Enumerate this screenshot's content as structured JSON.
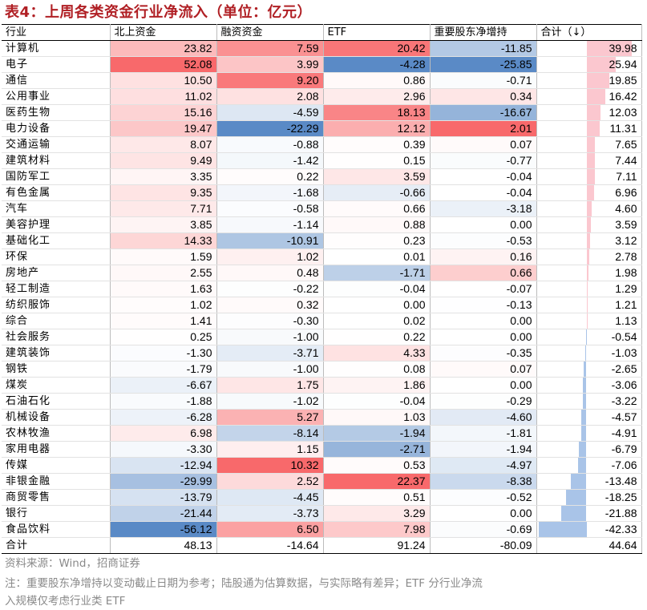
{
  "title": "表4：上周各类资金行业净流入（单位：亿元）",
  "headers": [
    "行业",
    "北上资金",
    "融资资金",
    "ETF",
    "重要股东净增持",
    "合计（↓）"
  ],
  "rows": [
    [
      "计算机",
      23.82,
      7.59,
      20.42,
      -11.85,
      39.98
    ],
    [
      "电子",
      52.08,
      3.99,
      -4.28,
      -25.85,
      25.94
    ],
    [
      "通信",
      10.5,
      9.2,
      0.86,
      -0.71,
      19.85
    ],
    [
      "公用事业",
      11.02,
      2.08,
      2.96,
      0.34,
      16.42
    ],
    [
      "医药生物",
      15.16,
      -4.59,
      18.13,
      -16.67,
      12.03
    ],
    [
      "电力设备",
      19.47,
      -22.29,
      12.12,
      2.01,
      11.31
    ],
    [
      "交通运输",
      8.07,
      -0.88,
      0.39,
      0.07,
      7.65
    ],
    [
      "建筑材料",
      9.49,
      -1.42,
      0.15,
      -0.77,
      7.44
    ],
    [
      "国防军工",
      3.35,
      0.22,
      3.59,
      -0.04,
      7.11
    ],
    [
      "有色金属",
      9.35,
      -1.68,
      -0.66,
      -0.04,
      6.96
    ],
    [
      "汽车",
      7.71,
      -0.58,
      0.66,
      -3.18,
      4.6
    ],
    [
      "美容护理",
      3.85,
      -1.14,
      0.88,
      0.0,
      3.59
    ],
    [
      "基础化工",
      14.33,
      -10.91,
      0.23,
      -0.53,
      3.12
    ],
    [
      "环保",
      1.59,
      1.02,
      0.01,
      0.16,
      2.78
    ],
    [
      "房地产",
      2.55,
      0.48,
      -1.71,
      0.66,
      1.98
    ],
    [
      "轻工制造",
      1.63,
      -0.22,
      -0.04,
      -0.07,
      1.29
    ],
    [
      "纺织服饰",
      1.02,
      0.32,
      0.0,
      -0.13,
      1.21
    ],
    [
      "综合",
      1.41,
      -0.3,
      0.02,
      0.0,
      1.13
    ],
    [
      "社会服务",
      0.25,
      -1.0,
      0.22,
      0.0,
      -0.54
    ],
    [
      "建筑装饰",
      -1.3,
      -3.71,
      4.33,
      -0.35,
      -1.03
    ],
    [
      "钢铁",
      -1.79,
      -1.0,
      0.08,
      0.07,
      -2.65
    ],
    [
      "煤炭",
      -6.67,
      1.75,
      1.86,
      0.0,
      -3.06
    ],
    [
      "石油石化",
      -1.88,
      -1.02,
      -0.04,
      -0.29,
      -3.22
    ],
    [
      "机械设备",
      -6.28,
      5.27,
      1.03,
      -4.6,
      -4.57
    ],
    [
      "农林牧渔",
      6.98,
      -8.14,
      -1.94,
      -1.81,
      -4.91
    ],
    [
      "家用电器",
      -3.3,
      1.15,
      -2.71,
      -1.94,
      -6.79
    ],
    [
      "传媒",
      -12.94,
      10.32,
      0.53,
      -4.97,
      -7.06
    ],
    [
      "非银金融",
      -29.99,
      2.52,
      22.37,
      -8.38,
      -13.48
    ],
    [
      "商贸零售",
      -13.79,
      -4.45,
      0.51,
      -0.52,
      -18.25
    ],
    [
      "银行",
      -21.44,
      -3.73,
      3.29,
      0.0,
      -21.88
    ],
    [
      "食品饮料",
      -56.12,
      6.5,
      7.98,
      -0.69,
      -42.33
    ]
  ],
  "total_row": [
    "合计",
    48.13,
    -14.64,
    91.24,
    -80.09,
    44.64
  ],
  "source": "资料来源：Wind，招商证券",
  "note_line1": "注：重要股东净增持以变动截止日期为参考；陆股通为估算数据，与实际略有差异；ETF 分行业净流",
  "note_line2": "入规模仅考虑行业类 ETF",
  "colors": {
    "title": "#b01f24",
    "positive": "#f8696b",
    "negative": "#5a8ac6",
    "bar_positive": "#fbc7cf",
    "bar_negative": "#a9c4e8",
    "source_text": "#8a8a8a"
  }
}
